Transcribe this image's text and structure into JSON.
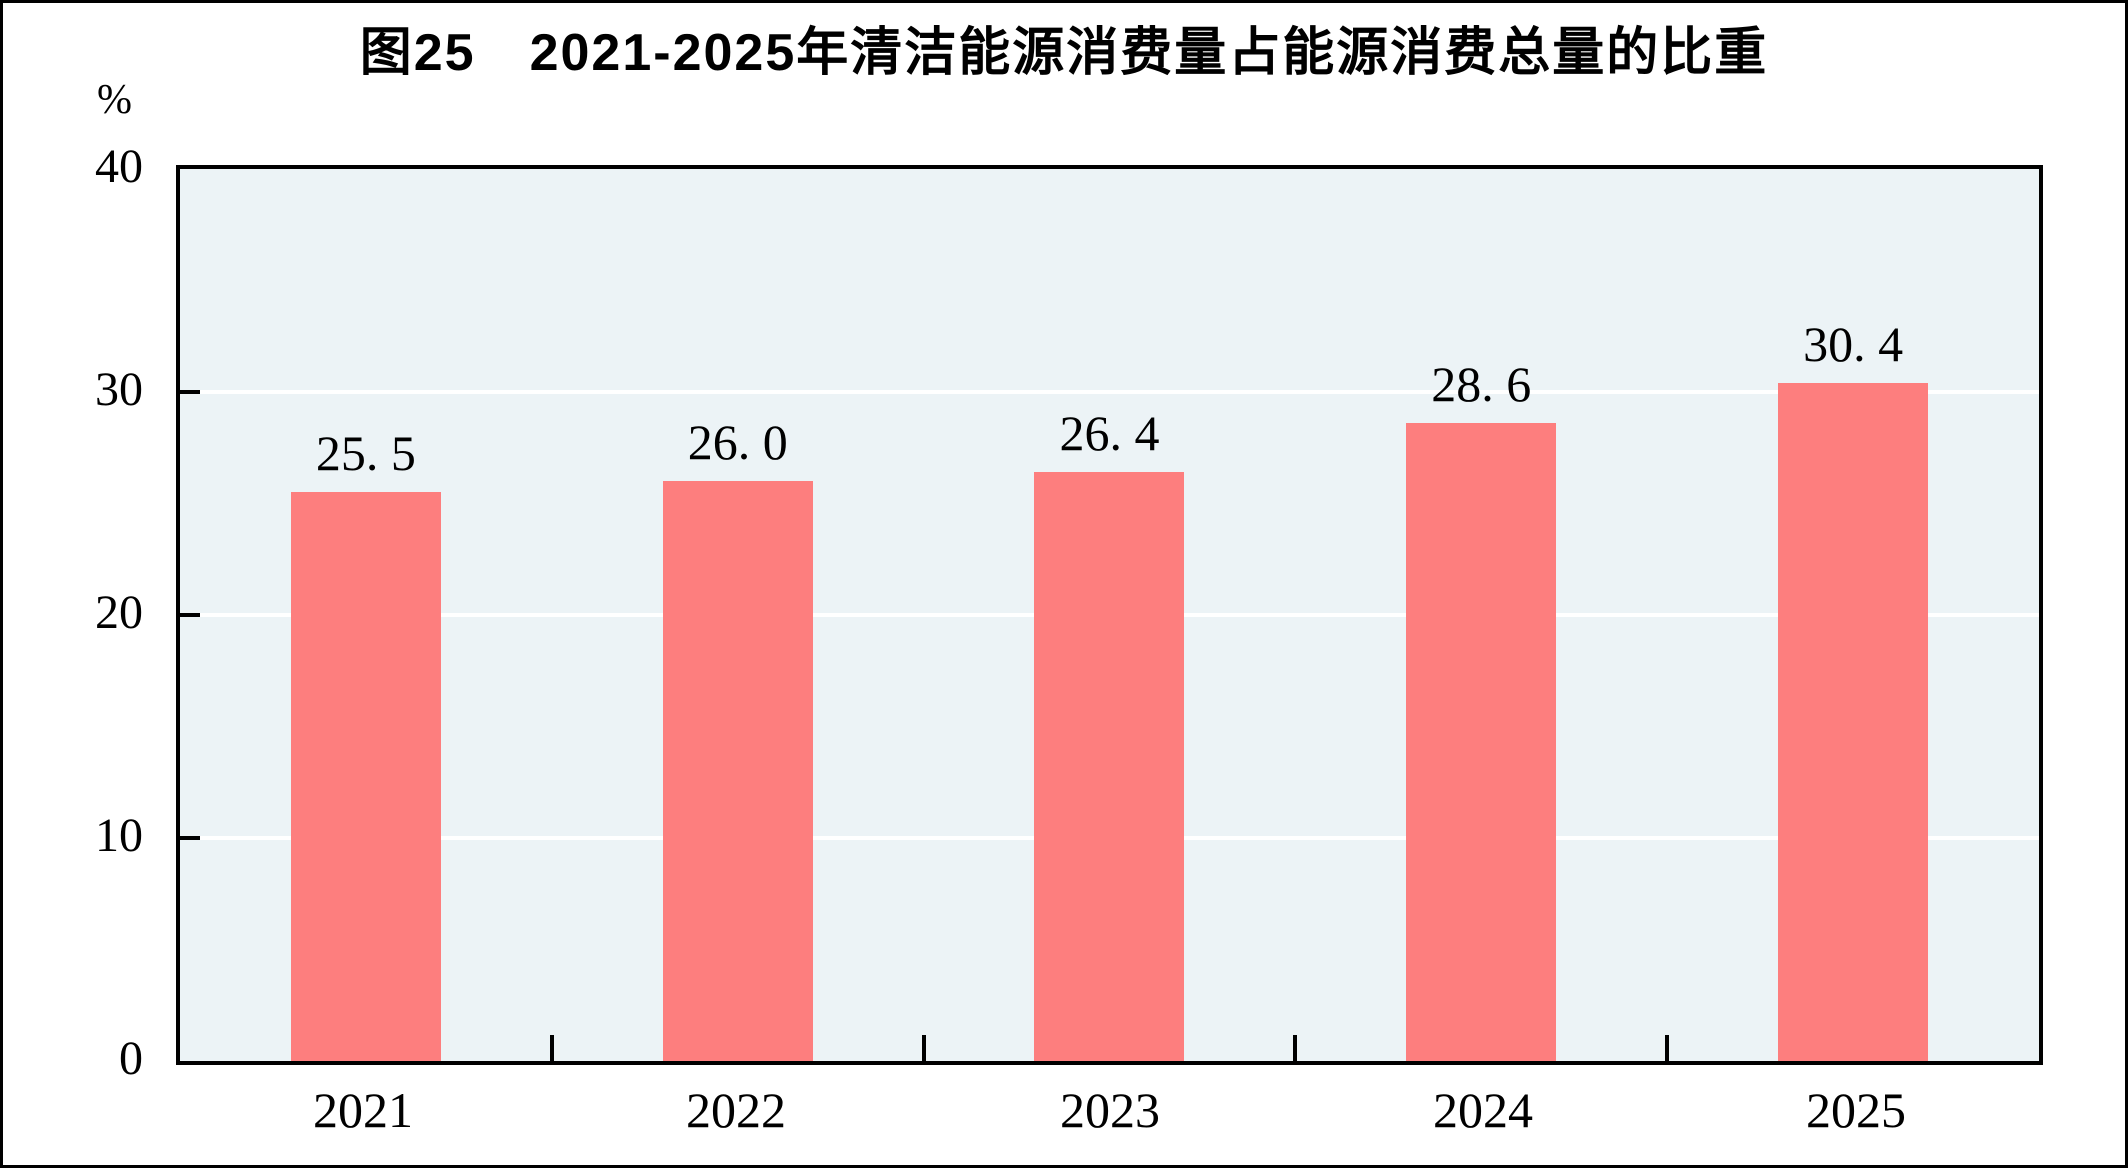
{
  "page": {
    "background": "#FFFFFF",
    "border_color": "#000000"
  },
  "chart_data": {
    "type": "bar",
    "title": "图25　2021-2025年清洁能源消费量占能源消费总量的比重",
    "unit_label": "%",
    "categories": [
      "2021",
      "2022",
      "2023",
      "2024",
      "2025"
    ],
    "values": [
      25.5,
      26.0,
      26.4,
      28.6,
      30.4
    ],
    "value_labels": [
      "25. 5",
      "26. 0",
      "26. 4",
      "28. 6",
      "30. 4"
    ],
    "xlabel": "",
    "ylabel": "%",
    "ylim": [
      0,
      40
    ],
    "yticks": [
      0,
      10,
      20,
      30,
      40
    ],
    "gridlines_at": [
      10,
      20,
      30
    ],
    "legend": "none",
    "colors": {
      "bar": "#FD7E7E",
      "plot_background": "#ECF3F6",
      "gridline": "#FFFFFF",
      "axis": "#000000",
      "text": "#000000"
    }
  }
}
